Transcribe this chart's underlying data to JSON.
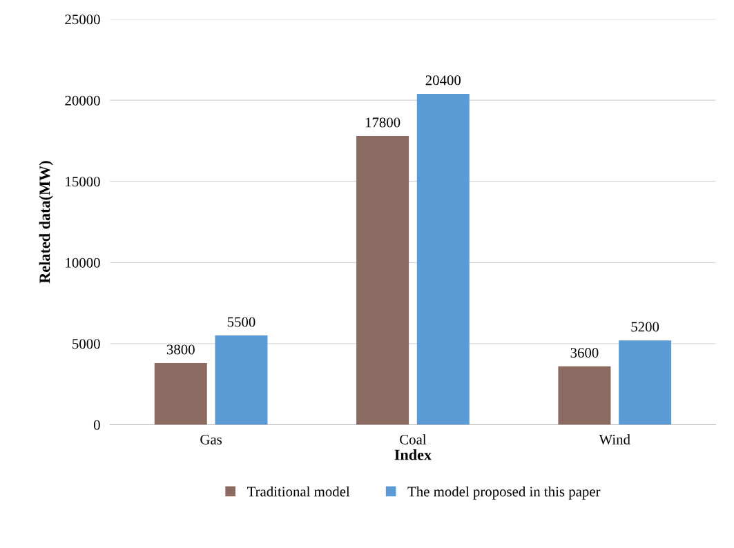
{
  "chart_data": {
    "type": "bar",
    "xlabel": "Index",
    "ylabel": "Related data(MW)",
    "categories": [
      "Gas",
      "Coal",
      "Wind"
    ],
    "series": [
      {
        "name": "Traditional model",
        "color": "#8b6a62",
        "values": [
          3800,
          17800,
          3600
        ]
      },
      {
        "name": "The model proposed in this paper",
        "color": "#5b9bd5",
        "values": [
          5500,
          20400,
          5200
        ]
      }
    ],
    "ylim": [
      0,
      25000
    ],
    "yticks": [
      0,
      5000,
      10000,
      15000,
      20000,
      25000
    ],
    "grid": "y",
    "legend": "bottom",
    "data_labels": true
  }
}
